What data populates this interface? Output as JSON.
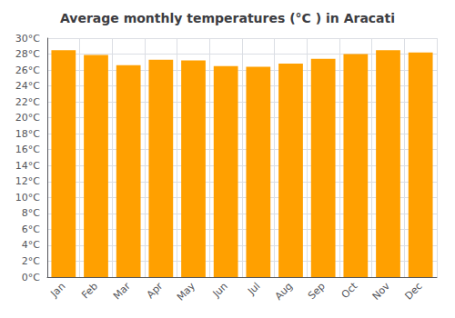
{
  "chart_data": {
    "type": "bar",
    "title": "Average monthly temperatures (°C ) in Aracati",
    "categories": [
      "Jan",
      "Feb",
      "Mar",
      "Apr",
      "May",
      "Jun",
      "Jul",
      "Aug",
      "Sep",
      "Oct",
      "Nov",
      "Dec"
    ],
    "values": [
      28.5,
      27.9,
      26.6,
      27.3,
      27.2,
      26.5,
      26.4,
      26.8,
      27.4,
      28.0,
      28.5,
      28.2
    ],
    "color": "#FFA000",
    "ylim": [
      0,
      30
    ],
    "yticks": [
      {
        "value": 0,
        "label": "0°C"
      },
      {
        "value": 2,
        "label": "2°C"
      },
      {
        "value": 4,
        "label": "4°C"
      },
      {
        "value": 6,
        "label": "6°C"
      },
      {
        "value": 8,
        "label": "8°C"
      },
      {
        "value": 10,
        "label": "10°C"
      },
      {
        "value": 12,
        "label": "12°C"
      },
      {
        "value": 14,
        "label": "14°C"
      },
      {
        "value": 16,
        "label": "16°C"
      },
      {
        "value": 18,
        "label": "18°C"
      },
      {
        "value": 20,
        "label": "20°C"
      },
      {
        "value": 22,
        "label": "22°C"
      },
      {
        "value": 24,
        "label": "24°C"
      },
      {
        "value": 26,
        "label": "26°C"
      },
      {
        "value": 28,
        "label": "28°C"
      },
      {
        "value": 30,
        "label": "30°C"
      }
    ],
    "grid": true
  }
}
